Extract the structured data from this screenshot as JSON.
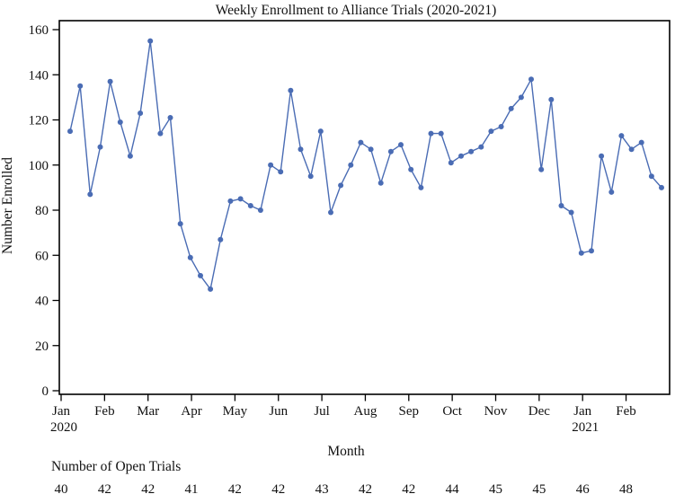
{
  "chart_data": {
    "type": "line",
    "title": "Weekly Enrollment to Alliance Trials (2020-2021)",
    "xlabel": "Month",
    "ylabel": "Number Enrolled",
    "ylim": [
      0,
      160
    ],
    "y_ticks": [
      0,
      20,
      40,
      60,
      80,
      100,
      120,
      140,
      160
    ],
    "grid": false,
    "legend_position": "none",
    "x_ticks": [
      {
        "label": "Jan",
        "year": "2020"
      },
      {
        "label": "Feb",
        "year": ""
      },
      {
        "label": "Mar",
        "year": ""
      },
      {
        "label": "Apr",
        "year": ""
      },
      {
        "label": "May",
        "year": ""
      },
      {
        "label": "Jun",
        "year": ""
      },
      {
        "label": "Jul",
        "year": ""
      },
      {
        "label": "Aug",
        "year": ""
      },
      {
        "label": "Sep",
        "year": ""
      },
      {
        "label": "Oct",
        "year": ""
      },
      {
        "label": "Nov",
        "year": ""
      },
      {
        "label": "Dec",
        "year": ""
      },
      {
        "label": "Jan",
        "year": "2021"
      },
      {
        "label": "Feb",
        "year": ""
      }
    ],
    "series": [
      {
        "name": "Weekly enrollment",
        "color": "#4a6cb4",
        "marker": "circle",
        "values": [
          115,
          135,
          87,
          108,
          137,
          119,
          104,
          123,
          155,
          114,
          121,
          74,
          59,
          51,
          45,
          67,
          84,
          85,
          82,
          80,
          100,
          97,
          133,
          107,
          95,
          115,
          79,
          91,
          100,
          110,
          107,
          92,
          106,
          109,
          98,
          90,
          114,
          114,
          101,
          104,
          106,
          108,
          115,
          117,
          125,
          130,
          138,
          98,
          129,
          82,
          79,
          61,
          62,
          104,
          88,
          113,
          107,
          110,
          95,
          90
        ]
      }
    ],
    "footer": {
      "label": "Number of Open Trials",
      "values": [
        40,
        42,
        42,
        41,
        42,
        42,
        43,
        42,
        42,
        44,
        45,
        45,
        46,
        48
      ]
    },
    "colors": {
      "line": "#4a6cb4",
      "axis": "#000000",
      "text": "#111111",
      "background": "#ffffff"
    }
  }
}
